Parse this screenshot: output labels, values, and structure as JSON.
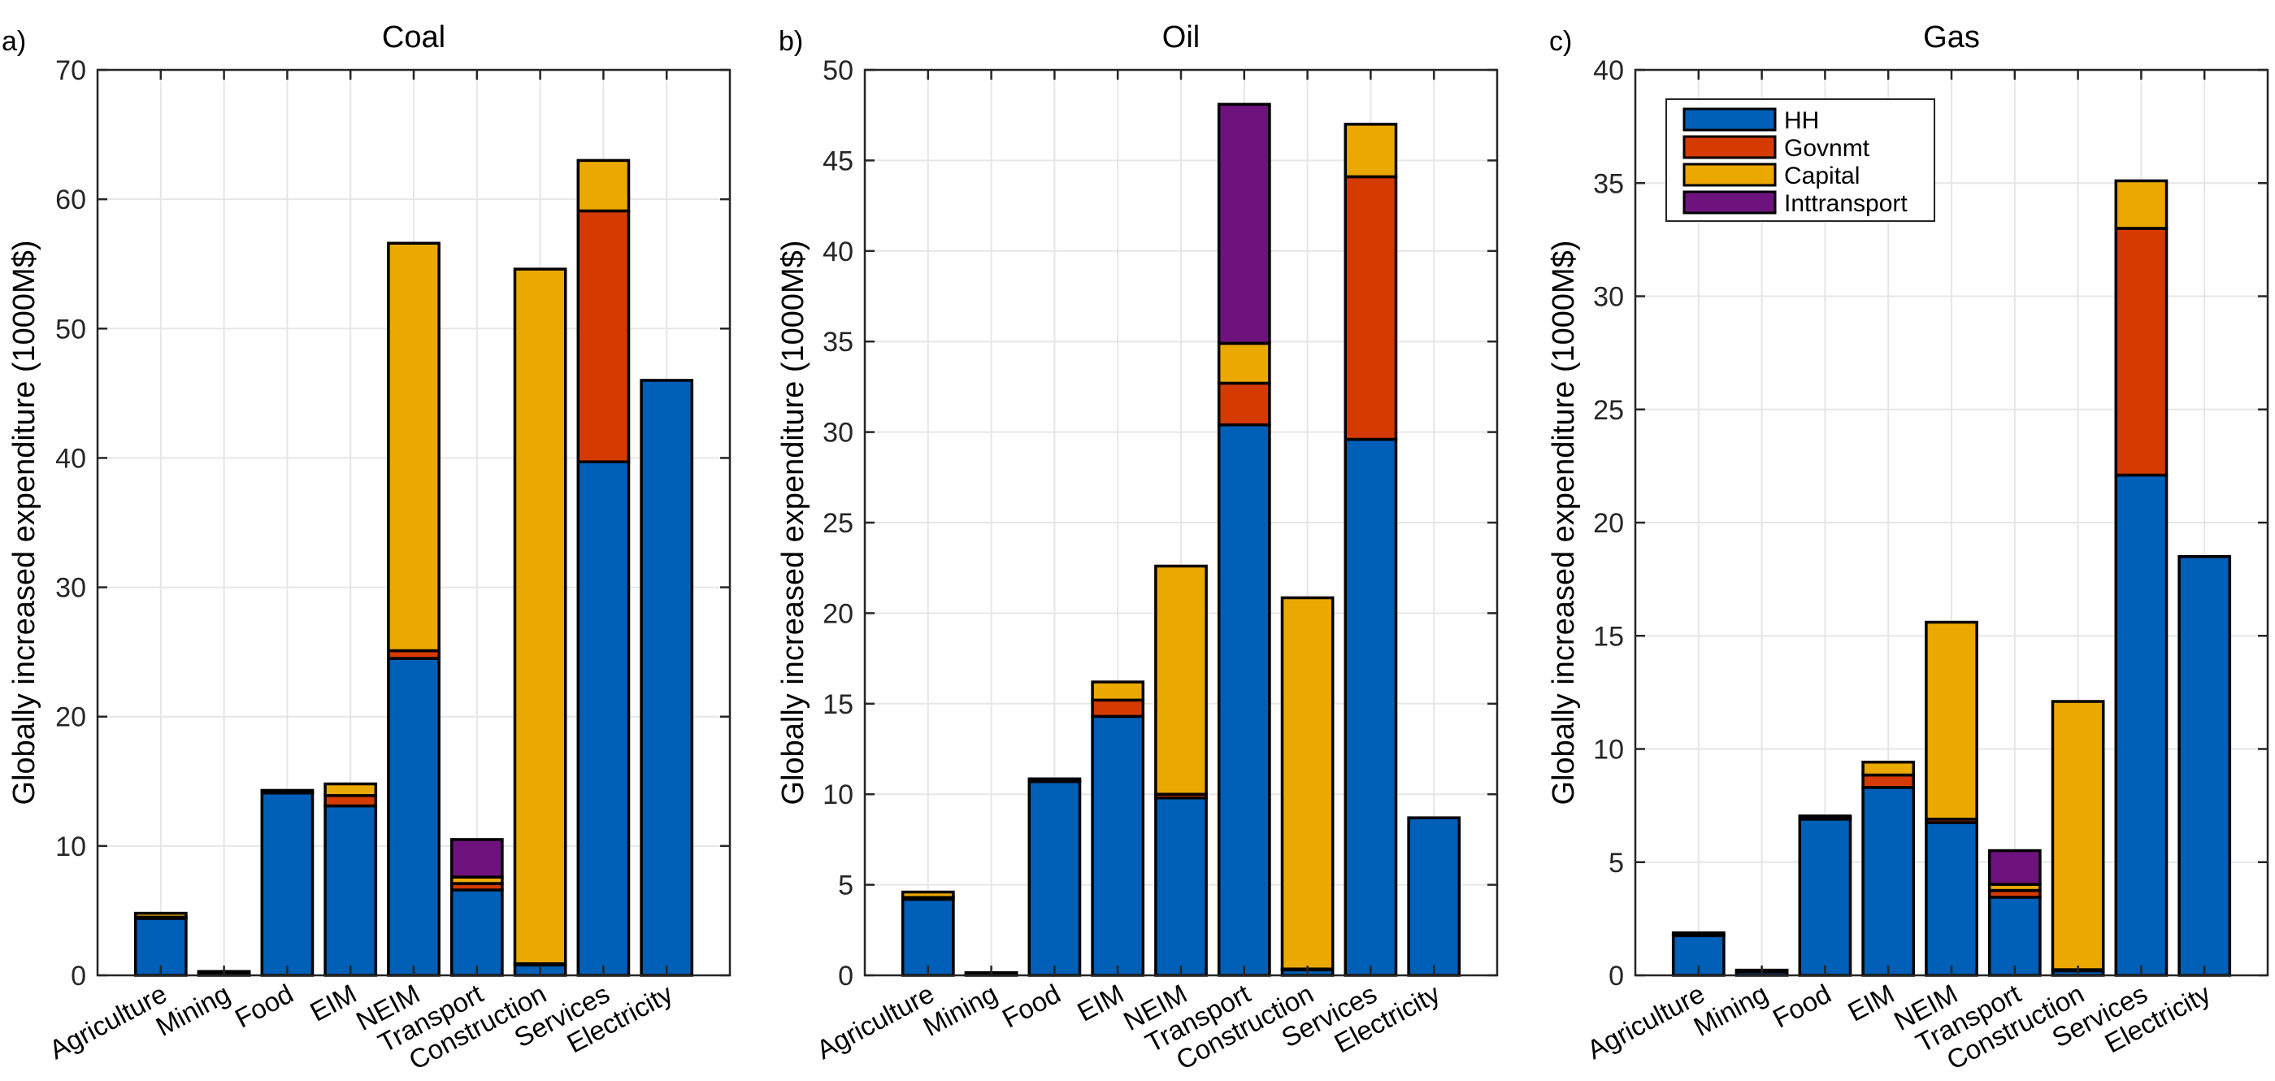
{
  "chart_data": [
    {
      "type": "bar",
      "stacked": true,
      "panel_label": "a)",
      "title": "Coal",
      "xlabel": "",
      "ylabel": "Globally increased expenditure (1000M$)",
      "ylim": [
        0,
        70
      ],
      "yticks": [
        0,
        10,
        20,
        30,
        40,
        50,
        60,
        70
      ],
      "grid": true,
      "categories": [
        "Agriculture",
        "Mining",
        "Food",
        "EIM",
        "NEIM",
        "Transport",
        "Construction",
        "Services",
        "Electricity"
      ],
      "series": [
        {
          "name": "HH",
          "values": [
            4.4,
            0.2,
            14.1,
            13.1,
            24.5,
            6.6,
            0.8,
            39.7,
            46.0
          ]
        },
        {
          "name": "Govnmt",
          "values": [
            0.1,
            0.05,
            0.1,
            0.8,
            0.6,
            0.5,
            0.1,
            19.4,
            0.0
          ]
        },
        {
          "name": "Capital",
          "values": [
            0.3,
            0.05,
            0.1,
            0.9,
            31.5,
            0.5,
            53.7,
            3.9,
            0.0
          ]
        },
        {
          "name": "Inttransport",
          "values": [
            0.0,
            0.0,
            0.0,
            0.0,
            0.0,
            2.9,
            0.0,
            0.0,
            0.0
          ]
        }
      ],
      "legend": null
    },
    {
      "type": "bar",
      "stacked": true,
      "panel_label": "b)",
      "title": "Oil",
      "xlabel": "",
      "ylabel": "Globally increased expenditure (1000M$)",
      "ylim": [
        0,
        50
      ],
      "yticks": [
        0,
        5,
        10,
        15,
        20,
        25,
        30,
        35,
        40,
        45,
        50
      ],
      "grid": true,
      "categories": [
        "Agriculture",
        "Mining",
        "Food",
        "EIM",
        "NEIM",
        "Transport",
        "Construction",
        "Services",
        "Electricity"
      ],
      "series": [
        {
          "name": "HH",
          "values": [
            4.2,
            0.1,
            10.7,
            14.3,
            9.8,
            30.4,
            0.3,
            29.6,
            8.7
          ]
        },
        {
          "name": "Govnmt",
          "values": [
            0.1,
            0.02,
            0.05,
            0.9,
            0.2,
            2.3,
            0.05,
            14.5,
            0.0
          ]
        },
        {
          "name": "Capital",
          "values": [
            0.3,
            0.03,
            0.1,
            1.0,
            12.6,
            2.2,
            20.5,
            2.9,
            0.0
          ]
        },
        {
          "name": "Inttransport",
          "values": [
            0.0,
            0.0,
            0.0,
            0.0,
            0.0,
            13.2,
            0.0,
            0.0,
            0.0
          ]
        }
      ],
      "legend": null
    },
    {
      "type": "bar",
      "stacked": true,
      "panel_label": "c)",
      "title": "Gas",
      "xlabel": "",
      "ylabel": "Globally increased expenditure (1000M$)",
      "ylim": [
        0,
        40
      ],
      "yticks": [
        0,
        5,
        10,
        15,
        20,
        25,
        30,
        35,
        40
      ],
      "grid": true,
      "categories": [
        "Agriculture",
        "Mining",
        "Food",
        "EIM",
        "NEIM",
        "Transport",
        "Construction",
        "Services",
        "Electricity"
      ],
      "series": [
        {
          "name": "HH",
          "values": [
            1.75,
            0.15,
            6.9,
            8.3,
            6.75,
            3.45,
            0.2,
            22.1,
            18.5
          ]
        },
        {
          "name": "Govnmt",
          "values": [
            0.05,
            0.04,
            0.05,
            0.55,
            0.15,
            0.3,
            0.05,
            10.9,
            0.0
          ]
        },
        {
          "name": "Capital",
          "values": [
            0.08,
            0.04,
            0.09,
            0.57,
            8.7,
            0.27,
            11.85,
            2.1,
            0.0
          ]
        },
        {
          "name": "Inttransport",
          "values": [
            0.0,
            0.0,
            0.0,
            0.0,
            0.0,
            1.49,
            0.0,
            0.0,
            0.0
          ]
        }
      ],
      "legend": {
        "placement": "top-left",
        "entries": [
          "HH",
          "Govnmt",
          "Capital",
          "Inttransport"
        ]
      }
    }
  ],
  "colors": {
    "HH": "#005FB6",
    "Govnmt": "#D53A00",
    "Capital": "#EBA900",
    "Inttransport": "#6E137D",
    "grid": "#E6E6E6",
    "axis": "#262626"
  }
}
